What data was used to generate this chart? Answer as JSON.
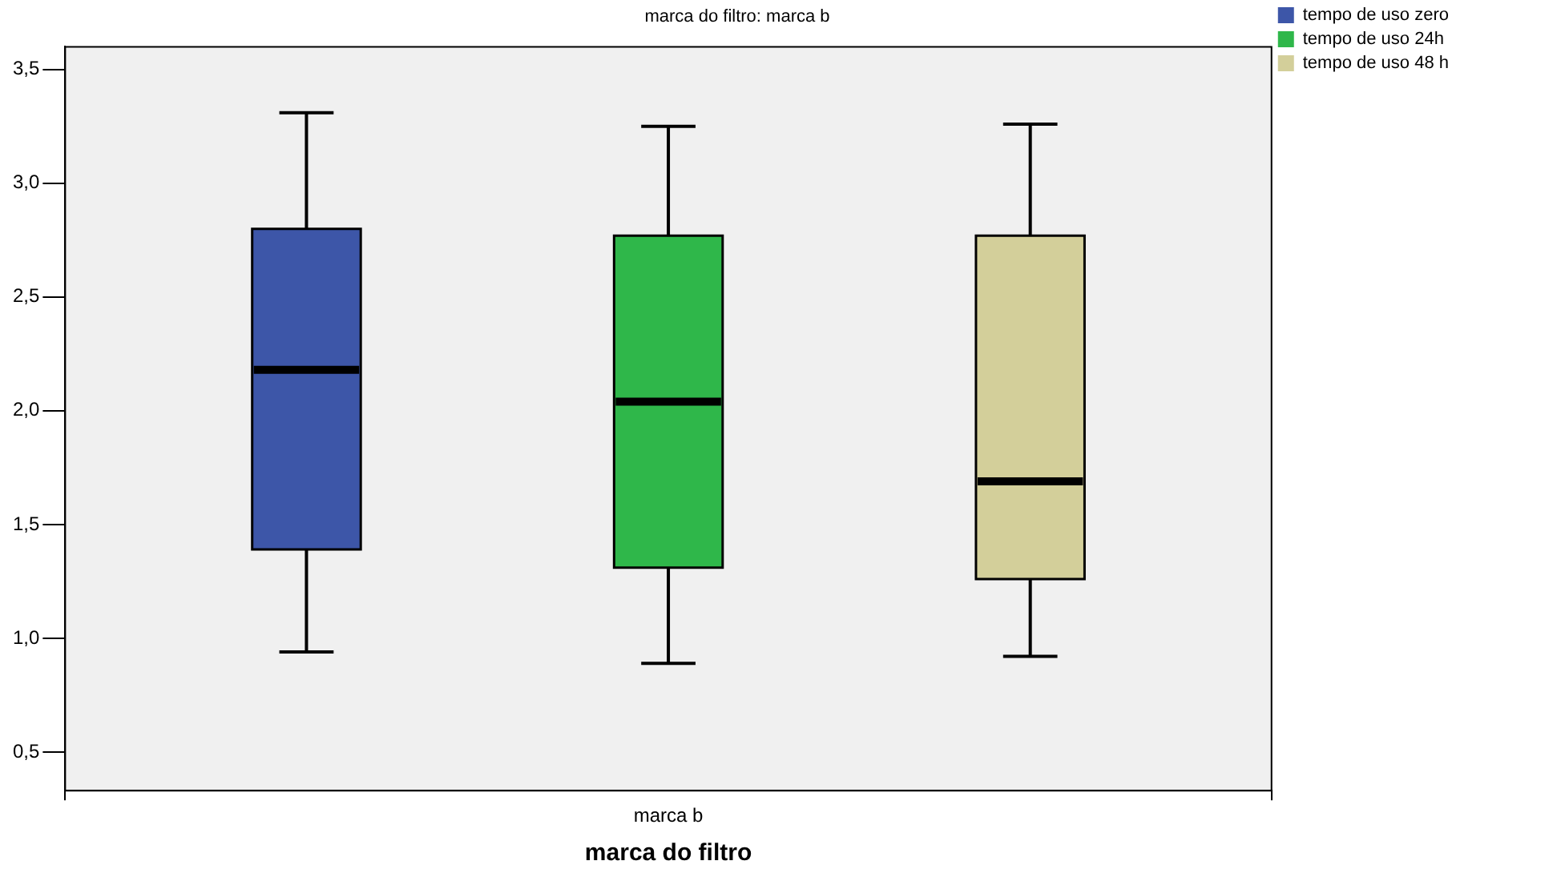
{
  "chart_data": {
    "type": "box",
    "title": "marca do filtro: marca b",
    "xlabel": "marca do filtro",
    "categories": [
      "marca b"
    ],
    "series": [
      {
        "name": "tempo de uso zero",
        "color": "#3d56a8",
        "boxes": [
          {
            "low": 0.94,
            "q1": 1.39,
            "median": 2.18,
            "q3": 2.8,
            "high": 3.31
          }
        ]
      },
      {
        "name": "tempo de uso 24h",
        "color": "#2fb74a",
        "boxes": [
          {
            "low": 0.89,
            "q1": 1.31,
            "median": 2.04,
            "q3": 2.77,
            "high": 3.25
          }
        ]
      },
      {
        "name": "tempo de uso 48 h",
        "color": "#d3cf9a",
        "boxes": [
          {
            "low": 0.92,
            "q1": 1.26,
            "median": 1.69,
            "q3": 2.77,
            "high": 3.26
          }
        ]
      }
    ],
    "ylim": [
      0.33,
      3.6
    ],
    "yticks": [
      {
        "value": 0.5,
        "label": "0,5"
      },
      {
        "value": 1,
        "label": "1,0"
      },
      {
        "value": 1.5,
        "label": "1,5"
      },
      {
        "value": 2,
        "label": "2,0"
      },
      {
        "value": 2.5,
        "label": "2,5"
      },
      {
        "value": 3,
        "label": "3,0"
      },
      {
        "value": 3.5,
        "label": "3,5"
      }
    ],
    "grid": false,
    "legend": "top right"
  }
}
